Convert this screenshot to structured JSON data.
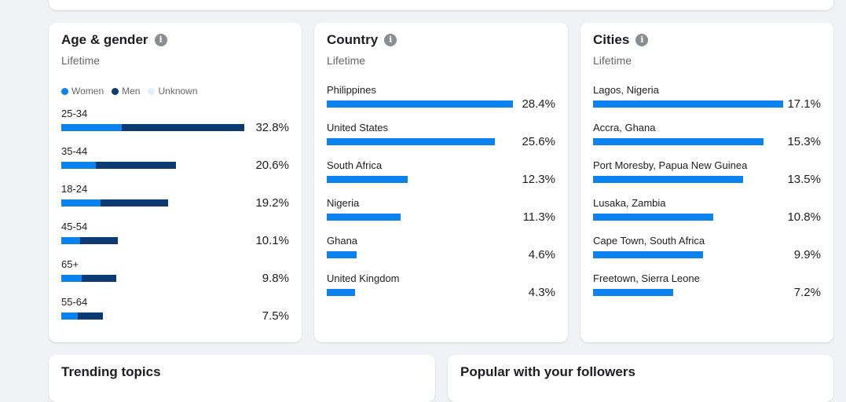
{
  "colors": {
    "women": "#0a82f0",
    "men": "#0b3a71",
    "unknown": "#e4effd",
    "bar": "#0a82f0"
  },
  "age_gender": {
    "title": "Age & gender",
    "subtitle": "Lifetime",
    "legend": [
      "Women",
      "Men",
      "Unknown"
    ],
    "rows": [
      {
        "label": "25-34",
        "women": 10.9,
        "men": 21.9,
        "value": "32.8%"
      },
      {
        "label": "35-44",
        "women": 6.2,
        "men": 14.4,
        "value": "20.6%"
      },
      {
        "label": "18-24",
        "women": 7.1,
        "men": 12.1,
        "value": "19.2%"
      },
      {
        "label": "45-54",
        "women": 3.4,
        "men": 6.7,
        "value": "10.1%"
      },
      {
        "label": "65+",
        "women": 3.7,
        "men": 6.1,
        "value": "9.8%"
      },
      {
        "label": "55-64",
        "women": 2.9,
        "men": 4.6,
        "value": "7.5%"
      }
    ]
  },
  "country": {
    "title": "Country",
    "subtitle": "Lifetime",
    "rows": [
      {
        "label": "Philippines",
        "pct": 28.4,
        "value": "28.4%"
      },
      {
        "label": "United States",
        "pct": 25.6,
        "value": "25.6%"
      },
      {
        "label": "South Africa",
        "pct": 12.3,
        "value": "12.3%"
      },
      {
        "label": "Nigeria",
        "pct": 11.3,
        "value": "11.3%"
      },
      {
        "label": "Ghana",
        "pct": 4.6,
        "value": "4.6%"
      },
      {
        "label": "United Kingdom",
        "pct": 4.3,
        "value": "4.3%"
      }
    ]
  },
  "cities": {
    "title": "Cities",
    "subtitle": "Lifetime",
    "rows": [
      {
        "label": "Lagos, Nigeria",
        "pct": 17.1,
        "value": "17.1%"
      },
      {
        "label": "Accra, Ghana",
        "pct": 15.3,
        "value": "15.3%"
      },
      {
        "label": "Port Moresby, Papua New Guinea",
        "pct": 13.5,
        "value": "13.5%"
      },
      {
        "label": "Lusaka, Zambia",
        "pct": 10.8,
        "value": "10.8%"
      },
      {
        "label": "Cape Town, South Africa",
        "pct": 9.9,
        "value": "9.9%"
      },
      {
        "label": "Freetown, Sierra Leone",
        "pct": 7.2,
        "value": "7.2%"
      }
    ]
  },
  "bottom": {
    "trending_title": "Trending topics",
    "popular_title": "Popular with your followers"
  }
}
